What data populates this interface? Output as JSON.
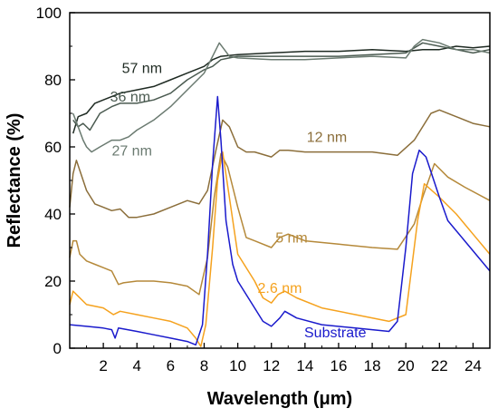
{
  "chart_data": {
    "type": "line",
    "title": "",
    "xlabel": "Wavelength (μm)",
    "ylabel": "Reflectance (%)",
    "xlim": [
      0,
      25
    ],
    "ylim": [
      0,
      100
    ],
    "x_ticks": [
      2,
      4,
      6,
      8,
      10,
      12,
      14,
      16,
      18,
      20,
      22,
      24
    ],
    "y_ticks": [
      0,
      20,
      40,
      60,
      80,
      100
    ],
    "grid": false,
    "legend": "inline labels",
    "series": [
      {
        "name": "57 nm",
        "color": "#1e2a22",
        "label_at": [
          4.3,
          82
        ],
        "points": [
          [
            0.2,
            64
          ],
          [
            0.5,
            69
          ],
          [
            1,
            70
          ],
          [
            1.5,
            73
          ],
          [
            2,
            74
          ],
          [
            3,
            76
          ],
          [
            4,
            77
          ],
          [
            5,
            78
          ],
          [
            6,
            80
          ],
          [
            7,
            82
          ],
          [
            8,
            84
          ],
          [
            8.5,
            86
          ],
          [
            9,
            87
          ],
          [
            10,
            87.5
          ],
          [
            12,
            88
          ],
          [
            14,
            88.5
          ],
          [
            16,
            88.5
          ],
          [
            18,
            89
          ],
          [
            20,
            88.5
          ],
          [
            21,
            89
          ],
          [
            22,
            89
          ],
          [
            23,
            90
          ],
          [
            24,
            89.5
          ],
          [
            25,
            90
          ]
        ]
      },
      {
        "name": "36 nm",
        "color": "#4a5a50",
        "label_at": [
          3.6,
          73.5
        ],
        "points": [
          [
            0.2,
            68
          ],
          [
            0.5,
            66
          ],
          [
            0.8,
            67
          ],
          [
            1.2,
            65
          ],
          [
            1.8,
            70
          ],
          [
            2.5,
            72
          ],
          [
            3,
            73
          ],
          [
            4,
            73
          ],
          [
            5,
            74
          ],
          [
            6,
            76
          ],
          [
            7,
            80
          ],
          [
            8,
            83
          ],
          [
            8.5,
            84
          ],
          [
            9,
            86
          ],
          [
            9.5,
            86.5
          ],
          [
            10,
            87
          ],
          [
            12,
            87
          ],
          [
            14,
            87
          ],
          [
            16,
            87
          ],
          [
            18,
            87.5
          ],
          [
            20,
            88
          ],
          [
            21,
            91
          ],
          [
            22,
            90
          ],
          [
            23,
            89
          ],
          [
            24,
            88
          ],
          [
            25,
            89
          ]
        ]
      },
      {
        "name": "27 nm",
        "color": "#6a7a70",
        "label_at": [
          3.7,
          57.5
        ],
        "points": [
          [
            0.2,
            70
          ],
          [
            0.5,
            66
          ],
          [
            0.8,
            62
          ],
          [
            1,
            60
          ],
          [
            1.3,
            58.5
          ],
          [
            1.8,
            60
          ],
          [
            2.5,
            62
          ],
          [
            3,
            62
          ],
          [
            3.5,
            63
          ],
          [
            4,
            65
          ],
          [
            5,
            68
          ],
          [
            6,
            72
          ],
          [
            7,
            77
          ],
          [
            8,
            82
          ],
          [
            8.5,
            87
          ],
          [
            8.9,
            91
          ],
          [
            9.2,
            89
          ],
          [
            9.5,
            87
          ],
          [
            10,
            86.5
          ],
          [
            12,
            86
          ],
          [
            14,
            86
          ],
          [
            16,
            86.5
          ],
          [
            18,
            87
          ],
          [
            20,
            86.5
          ],
          [
            20.5,
            90
          ],
          [
            21,
            92
          ],
          [
            22,
            91
          ],
          [
            23,
            89
          ],
          [
            24,
            89
          ],
          [
            25,
            88
          ]
        ]
      },
      {
        "name": "12 nm",
        "color": "#8b6e3a",
        "label_at": [
          15.3,
          61.5
        ],
        "points": [
          [
            0,
            42
          ],
          [
            0.2,
            52
          ],
          [
            0.4,
            56
          ],
          [
            0.6,
            53
          ],
          [
            1,
            47
          ],
          [
            1.5,
            43
          ],
          [
            2,
            42
          ],
          [
            2.5,
            41
          ],
          [
            3,
            41.5
          ],
          [
            3.5,
            39
          ],
          [
            4,
            39
          ],
          [
            5,
            40
          ],
          [
            6,
            42
          ],
          [
            7,
            44
          ],
          [
            7.7,
            43
          ],
          [
            8.2,
            47
          ],
          [
            8.7,
            59
          ],
          [
            9.1,
            68
          ],
          [
            9.5,
            66
          ],
          [
            10,
            60
          ],
          [
            10.5,
            58.5
          ],
          [
            11,
            58.5
          ],
          [
            12,
            57
          ],
          [
            12.5,
            59
          ],
          [
            13,
            59
          ],
          [
            14,
            58.5
          ],
          [
            16,
            58.5
          ],
          [
            18,
            58.5
          ],
          [
            19.5,
            57.5
          ],
          [
            20.5,
            62
          ],
          [
            21.5,
            70
          ],
          [
            22,
            71
          ],
          [
            23,
            69
          ],
          [
            24,
            67
          ],
          [
            25,
            66
          ]
        ]
      },
      {
        "name": "5 nm",
        "color": "#b5893a",
        "label_at": [
          13.2,
          31.5
        ],
        "points": [
          [
            0,
            27
          ],
          [
            0.2,
            32
          ],
          [
            0.4,
            32
          ],
          [
            0.6,
            28
          ],
          [
            1,
            26
          ],
          [
            1.5,
            25
          ],
          [
            2,
            24
          ],
          [
            2.5,
            23
          ],
          [
            2.9,
            19
          ],
          [
            3.2,
            19.5
          ],
          [
            4,
            20
          ],
          [
            5,
            20
          ],
          [
            6,
            19.5
          ],
          [
            7,
            18.5
          ],
          [
            7.7,
            16
          ],
          [
            8.2,
            27
          ],
          [
            8.6,
            45
          ],
          [
            9,
            58
          ],
          [
            9.4,
            54
          ],
          [
            10,
            42
          ],
          [
            10.5,
            33
          ],
          [
            11,
            32
          ],
          [
            12,
            30
          ],
          [
            12.5,
            33
          ],
          [
            13,
            34
          ],
          [
            14,
            32
          ],
          [
            16,
            31
          ],
          [
            18,
            30
          ],
          [
            19.5,
            29.5
          ],
          [
            20.5,
            37
          ],
          [
            21,
            45
          ],
          [
            21.7,
            55
          ],
          [
            22.5,
            51
          ],
          [
            23.5,
            48
          ],
          [
            25,
            44
          ]
        ]
      },
      {
        "name": "2.6 nm",
        "color": "#f5a21e",
        "label_at": [
          12.5,
          16.5
        ],
        "points": [
          [
            0,
            13
          ],
          [
            0.2,
            17
          ],
          [
            0.4,
            16
          ],
          [
            1,
            13
          ],
          [
            2,
            12
          ],
          [
            2.6,
            10
          ],
          [
            3,
            11
          ],
          [
            4,
            10
          ],
          [
            5,
            9
          ],
          [
            6,
            8
          ],
          [
            7,
            6
          ],
          [
            7.5,
            3
          ],
          [
            7.8,
            0.5
          ],
          [
            8.1,
            7
          ],
          [
            8.5,
            30
          ],
          [
            8.8,
            50
          ],
          [
            9.1,
            58.5
          ],
          [
            9.5,
            45
          ],
          [
            10,
            28
          ],
          [
            11,
            20
          ],
          [
            11.5,
            15
          ],
          [
            12,
            13.5
          ],
          [
            12.4,
            16
          ],
          [
            12.8,
            17
          ],
          [
            13.5,
            15
          ],
          [
            15,
            12
          ],
          [
            17,
            10
          ],
          [
            19,
            8
          ],
          [
            20,
            10
          ],
          [
            20.7,
            38
          ],
          [
            21.1,
            49
          ],
          [
            22,
            45
          ],
          [
            23,
            40
          ],
          [
            24,
            34
          ],
          [
            25,
            28
          ]
        ]
      },
      {
        "name": "Substrate",
        "color": "#1a1acc",
        "label_at": [
          15.8,
          3.2
        ],
        "points": [
          [
            0,
            7
          ],
          [
            1,
            6.5
          ],
          [
            2,
            6
          ],
          [
            2.5,
            5.5
          ],
          [
            2.7,
            3
          ],
          [
            2.9,
            6
          ],
          [
            4,
            5
          ],
          [
            5,
            4
          ],
          [
            6,
            3
          ],
          [
            7,
            2
          ],
          [
            7.5,
            1
          ],
          [
            7.9,
            7
          ],
          [
            8.2,
            28
          ],
          [
            8.5,
            55
          ],
          [
            8.8,
            75
          ],
          [
            9,
            62
          ],
          [
            9.3,
            38
          ],
          [
            9.7,
            25
          ],
          [
            10,
            20
          ],
          [
            11,
            12
          ],
          [
            11.5,
            8
          ],
          [
            12,
            6.5
          ],
          [
            12.5,
            9
          ],
          [
            12.8,
            11
          ],
          [
            13.5,
            9
          ],
          [
            15,
            7
          ],
          [
            17,
            6
          ],
          [
            19,
            5
          ],
          [
            19.5,
            8
          ],
          [
            20,
            30
          ],
          [
            20.4,
            52
          ],
          [
            20.8,
            59
          ],
          [
            21.2,
            57
          ],
          [
            22,
            45
          ],
          [
            22.5,
            38
          ],
          [
            23.5,
            32
          ],
          [
            25,
            23
          ]
        ]
      }
    ]
  }
}
